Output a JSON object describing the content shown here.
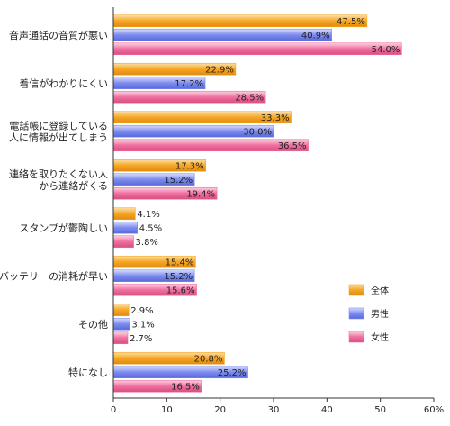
{
  "chart_data": {
    "type": "bar",
    "orientation": "horizontal",
    "categories": [
      [
        "音声通話の音質が悪い"
      ],
      [
        "着信がわかりにくい"
      ],
      [
        "電話帳に登録している",
        "人に情報が出てしまう"
      ],
      [
        "連絡を取りたくない人",
        "から連絡がくる"
      ],
      [
        "スタンプが鬱陶しい"
      ],
      [
        "バッテリーの消耗が早い"
      ],
      [
        "その他"
      ],
      [
        "特になし"
      ]
    ],
    "series": [
      {
        "name": "全体",
        "color": "#f5a623",
        "values": [
          47.5,
          22.9,
          33.3,
          17.3,
          4.1,
          15.4,
          2.9,
          20.8
        ]
      },
      {
        "name": "男性",
        "color": "#7c8cf0",
        "values": [
          40.9,
          17.2,
          30.0,
          15.2,
          4.5,
          15.2,
          3.1,
          25.2
        ]
      },
      {
        "name": "女性",
        "color": "#f070a0",
        "values": [
          54.0,
          28.5,
          36.5,
          19.4,
          3.8,
          15.6,
          2.7,
          16.5
        ]
      }
    ],
    "xlim": [
      0,
      60
    ],
    "xticks": [
      0,
      10,
      20,
      30,
      40,
      50,
      60
    ],
    "tick_suffix_last": "%",
    "value_suffix": "%",
    "legend_position": "right",
    "grid": false
  }
}
